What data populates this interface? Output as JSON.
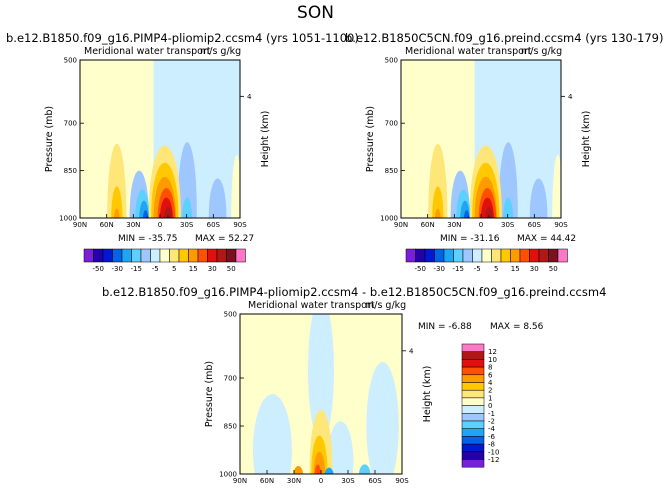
{
  "season": "SON",
  "colors": {
    "palette": [
      "#7a1fd9",
      "#2400a8",
      "#0018d0",
      "#0064e8",
      "#1ea6f5",
      "#5ed0ff",
      "#9ec6ff",
      "#cdeefe",
      "#ffffcc",
      "#ffe678",
      "#ffc800",
      "#ff9a00",
      "#ff5000",
      "#e01010",
      "#b01818",
      "#7a1020",
      "#ff78c8"
    ]
  },
  "chart_data": [
    {
      "type": "heatmap",
      "title": "b.e12.B1850.f09_g16.PIMP4-pliomip2.ccsm4 (yrs 1051-1100)",
      "subtitle_left": "Meridional water transport",
      "subtitle_right": "m/s g/kg",
      "ylabel": "Pressure (mb)",
      "ylabel_right": "Height (km)",
      "x_ticks": [
        "90N",
        "60N",
        "30N",
        "0",
        "30S",
        "60S",
        "90S"
      ],
      "y_ticks": [
        "500",
        "700",
        "850",
        "1000"
      ],
      "right_ticks": [
        "4"
      ],
      "min_label": "MIN = -35.75",
      "max_label": "MAX = 52.27",
      "min": -35.75,
      "max": 52.27,
      "colorbar_labels": [
        "-50",
        "-30",
        "-15",
        "-5",
        "5",
        "15",
        "30",
        "50"
      ]
    },
    {
      "type": "heatmap",
      "title": "b.e12.B1850C5CN.f09_g16.preind.ccsm4 (yrs 130-179)",
      "subtitle_left": "Meridional water transport",
      "subtitle_right": "m/s g/kg",
      "ylabel": "Pressure (mb)",
      "ylabel_right": "Height (km)",
      "x_ticks": [
        "90N",
        "60N",
        "30N",
        "0",
        "30S",
        "60S",
        "90S"
      ],
      "y_ticks": [
        "500",
        "700",
        "850",
        "1000"
      ],
      "right_ticks": [
        "4"
      ],
      "min_label": "MIN = -31.16",
      "max_label": "MAX = 44.42",
      "min": -31.16,
      "max": 44.42,
      "colorbar_labels": [
        "-50",
        "-30",
        "-15",
        "-5",
        "5",
        "15",
        "30",
        "50"
      ]
    },
    {
      "type": "heatmap",
      "title": "b.e12.B1850.f09_g16.PIMP4-pliomip2.ccsm4 - b.e12.B1850C5CN.f09_g16.preind.ccsm4",
      "subtitle_left": "Meridional water transport",
      "subtitle_right": "m/s g/kg",
      "ylabel": "Pressure (mb)",
      "ylabel_right": "Height (km)",
      "x_ticks": [
        "90N",
        "60N",
        "30N",
        "0",
        "30S",
        "60S",
        "90S"
      ],
      "y_ticks": [
        "500",
        "700",
        "850",
        "1000"
      ],
      "right_ticks": [
        "4"
      ],
      "min_label": "MIN = -6.88",
      "max_label": "MAX = 8.56",
      "min": -6.88,
      "max": 8.56,
      "colorbar_labels": [
        "12",
        "10",
        "8",
        "6",
        "4",
        "2",
        "1",
        "0",
        "-1",
        "-2",
        "-4",
        "-6",
        "-8",
        "-10",
        "-12"
      ]
    }
  ]
}
